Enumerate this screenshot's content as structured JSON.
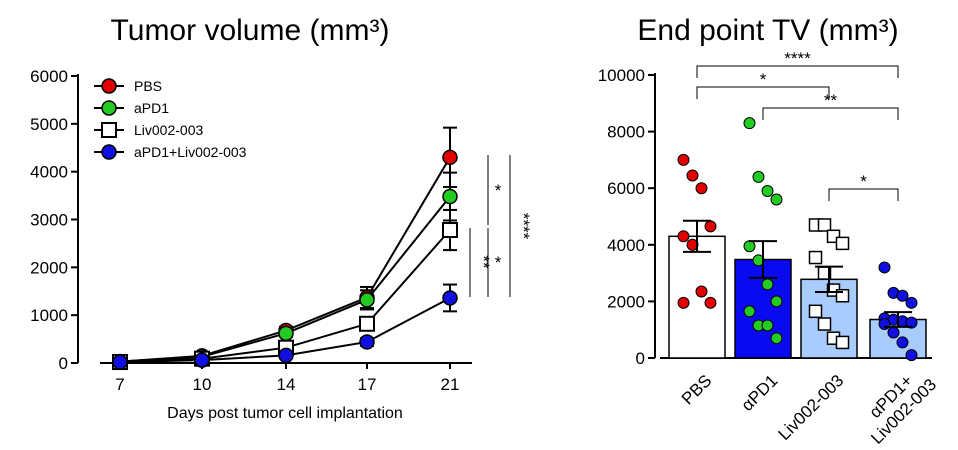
{
  "chart_data": [
    {
      "type": "line",
      "title": "Tumor volume (mm³)",
      "xlabel": "Days post tumor cell implantation",
      "ylabel": "",
      "x": [
        7,
        10,
        14,
        17,
        21
      ],
      "x_ticks": [
        "7",
        "10",
        "14",
        "17",
        "21"
      ],
      "y_ticks": [
        "0",
        "1000",
        "2000",
        "3000",
        "4000",
        "5000",
        "6000"
      ],
      "ylim": [
        0,
        6000
      ],
      "legend_position": "top-left",
      "series": [
        {
          "name": "PBS",
          "marker": "circle",
          "color": "#e00000",
          "values": [
            30,
            150,
            680,
            1370,
            4300
          ],
          "err": [
            20,
            50,
            80,
            220,
            620
          ]
        },
        {
          "name": "aPD1",
          "marker": "circle",
          "color": "#22cc22",
          "values": [
            30,
            130,
            620,
            1320,
            3480
          ],
          "err": [
            20,
            40,
            70,
            200,
            500
          ]
        },
        {
          "name": "Liv002-003",
          "marker": "square",
          "color": "#ffffff",
          "values": [
            20,
            90,
            320,
            820,
            2780
          ],
          "err": [
            15,
            30,
            60,
            130,
            420
          ]
        },
        {
          "name": "aPD1+Liv002-003",
          "marker": "circle",
          "color": "#1010e0",
          "values": [
            20,
            60,
            160,
            440,
            1360
          ],
          "err": [
            10,
            20,
            40,
            80,
            280
          ]
        }
      ],
      "significance": [
        {
          "label": "*",
          "between": "PBS vs aPD1+Liv002-003 inner"
        },
        {
          "label": "**",
          "between": "bracket"
        },
        {
          "label": "*",
          "between": "bracket"
        },
        {
          "label": "****",
          "between": "bracket"
        }
      ]
    },
    {
      "type": "bar",
      "title": "End point TV (mm³)",
      "ylim": [
        0,
        10000
      ],
      "y_ticks": [
        "0",
        "2000",
        "4000",
        "6000",
        "8000",
        "10000"
      ],
      "categories": [
        "PBS",
        "αPD1",
        "Liv002-003",
        "αPD1+\nLiv002-003"
      ],
      "values": [
        4300,
        3480,
        2780,
        1360
      ],
      "sem": [
        550,
        650,
        450,
        260
      ],
      "bar_colors": [
        "#ffffff",
        "#0a0af0",
        "#a9ccff",
        "#a9ccff"
      ],
      "points": [
        {
          "marker": "circle",
          "color": "#e00000",
          "values": [
            7000,
            6450,
            6000,
            4650,
            4300,
            4000,
            2350,
            1950,
            1950
          ]
        },
        {
          "marker": "circle",
          "color": "#22cc22",
          "values": [
            8300,
            6400,
            5900,
            5600,
            3950,
            3450,
            2600,
            2000,
            1650,
            1150,
            1150,
            700
          ]
        },
        {
          "marker": "square",
          "color": "#ffffff",
          "values": [
            4700,
            4700,
            4300,
            4050,
            3550,
            3000,
            2400,
            2200,
            1650,
            1200,
            700,
            550
          ]
        },
        {
          "marker": "circle",
          "color": "#1010e0",
          "values": [
            3200,
            2300,
            2200,
            1950,
            1400,
            1350,
            1300,
            1250,
            1200,
            900,
            550,
            100
          ]
        }
      ],
      "significance": [
        {
          "label": "****",
          "pair": [
            0,
            3
          ]
        },
        {
          "label": "*",
          "pair": [
            0,
            2
          ]
        },
        {
          "label": "**",
          "pair": [
            1,
            3
          ]
        },
        {
          "label": "*",
          "pair": [
            2,
            3
          ]
        }
      ]
    }
  ]
}
